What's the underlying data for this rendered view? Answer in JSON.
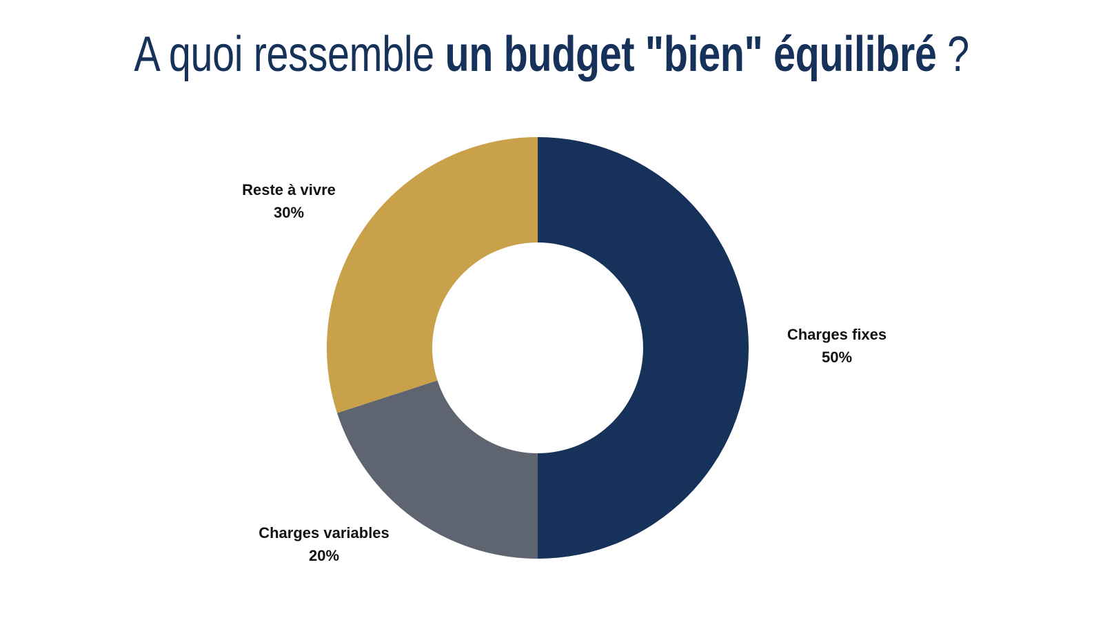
{
  "title": {
    "part1": "A quoi ressemble",
    "part2": "un budget \"bien\" équilibré",
    "part3": "?"
  },
  "chart_data": {
    "type": "pie",
    "donut": true,
    "categories": [
      "Charges fixes",
      "Charges variables",
      "Reste à vivre"
    ],
    "values": [
      50,
      20,
      30
    ],
    "labels": [
      "50%",
      "20%",
      "30%"
    ],
    "colors": [
      "#17325a",
      "#5f6570",
      "#c9a14a"
    ],
    "start": "top",
    "direction": "clockwise",
    "legend": "none"
  }
}
